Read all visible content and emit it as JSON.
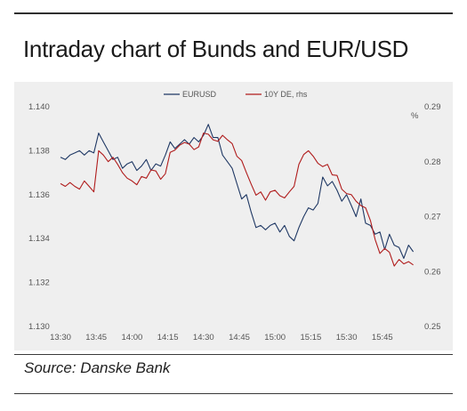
{
  "title": "Intraday chart of Bunds and EUR/USD",
  "source": "Source: Danske Bank",
  "colors": {
    "eurusd": "#1f3864",
    "bund": "#b01c1c",
    "panel_bg": "#efefef",
    "grid": "#cfcfcf"
  },
  "chart_data": {
    "type": "line",
    "x_labels": [
      "13:30",
      "13:45",
      "14:00",
      "14:15",
      "14:30",
      "14:45",
      "15:00",
      "15:15",
      "15:30",
      "15:45"
    ],
    "x_range": [
      "13:30",
      "16:00"
    ],
    "y_left": {
      "ticks": [
        "1.130",
        "1.132",
        "1.134",
        "1.136",
        "1.138",
        "1.140"
      ],
      "range": [
        1.13,
        1.14
      ]
    },
    "y_right": {
      "unit_label": "%",
      "ticks": [
        "0.25",
        "0.26",
        "0.27",
        "0.28",
        "0.29"
      ],
      "range": [
        0.25,
        0.29
      ]
    },
    "legend": {
      "placement": "top",
      "entries": [
        "EURUSD",
        "10Y DE, rhs"
      ]
    },
    "grid": false,
    "series": [
      {
        "name": "EURUSD",
        "axis": "left",
        "x": [
          "13:30",
          "13:32",
          "13:34",
          "13:36",
          "13:38",
          "13:40",
          "13:42",
          "13:44",
          "13:46",
          "13:48",
          "13:50",
          "13:52",
          "13:54",
          "13:56",
          "13:58",
          "14:00",
          "14:02",
          "14:04",
          "14:06",
          "14:08",
          "14:10",
          "14:12",
          "14:14",
          "14:16",
          "14:18",
          "14:20",
          "14:22",
          "14:24",
          "14:26",
          "14:28",
          "14:30",
          "14:32",
          "14:34",
          "14:36",
          "14:38",
          "14:40",
          "14:42",
          "14:44",
          "14:46",
          "14:48",
          "14:50",
          "14:52",
          "14:54",
          "14:56",
          "14:58",
          "15:00",
          "15:02",
          "15:04",
          "15:06",
          "15:08",
          "15:10",
          "15:12",
          "15:14",
          "15:16",
          "15:18",
          "15:20",
          "15:22",
          "15:24",
          "15:26",
          "15:28",
          "15:30",
          "15:32",
          "15:34",
          "15:36",
          "15:38",
          "15:40",
          "15:42",
          "15:44",
          "15:46",
          "15:48",
          "15:50",
          "15:52",
          "15:54",
          "15:56",
          "15:58"
        ],
        "values": [
          1.1377,
          1.1376,
          1.1378,
          1.1379,
          1.138,
          1.1378,
          1.138,
          1.1379,
          1.1388,
          1.1384,
          1.138,
          1.1376,
          1.1377,
          1.1372,
          1.1374,
          1.1375,
          1.1371,
          1.1373,
          1.1376,
          1.1371,
          1.1374,
          1.1373,
          1.1378,
          1.1384,
          1.1381,
          1.1383,
          1.1385,
          1.1383,
          1.1386,
          1.1384,
          1.1387,
          1.1392,
          1.1386,
          1.1386,
          1.1378,
          1.1375,
          1.1372,
          1.1365,
          1.1358,
          1.136,
          1.1352,
          1.1345,
          1.1346,
          1.1344,
          1.1346,
          1.1347,
          1.1343,
          1.1346,
          1.1341,
          1.1339,
          1.1345,
          1.135,
          1.1354,
          1.1353,
          1.1356,
          1.1368,
          1.1364,
          1.1366,
          1.1362,
          1.1357,
          1.136,
          1.1355,
          1.135,
          1.1358,
          1.1347,
          1.1346,
          1.1342,
          1.1343,
          1.1335,
          1.1342,
          1.1337,
          1.1336,
          1.1331,
          1.1337,
          1.1334
        ]
      },
      {
        "name": "10Y DE, rhs",
        "axis": "right",
        "x": [
          "13:30",
          "13:32",
          "13:34",
          "13:36",
          "13:38",
          "13:40",
          "13:42",
          "13:44",
          "13:46",
          "13:48",
          "13:50",
          "13:52",
          "13:54",
          "13:56",
          "13:58",
          "14:00",
          "14:02",
          "14:04",
          "14:06",
          "14:08",
          "14:10",
          "14:12",
          "14:14",
          "14:16",
          "14:18",
          "14:20",
          "14:22",
          "14:24",
          "14:26",
          "14:28",
          "14:30",
          "14:32",
          "14:34",
          "14:36",
          "14:38",
          "14:40",
          "14:42",
          "14:44",
          "14:46",
          "14:48",
          "14:50",
          "14:52",
          "14:54",
          "14:56",
          "14:58",
          "15:00",
          "15:02",
          "15:04",
          "15:06",
          "15:08",
          "15:10",
          "15:12",
          "15:14",
          "15:16",
          "15:18",
          "15:20",
          "15:22",
          "15:24",
          "15:26",
          "15:28",
          "15:30",
          "15:32",
          "15:34",
          "15:36",
          "15:38",
          "15:40",
          "15:42",
          "15:44",
          "15:46",
          "15:48",
          "15:50",
          "15:52",
          "15:54",
          "15:56",
          "15:58"
        ],
        "values": [
          0.276,
          0.2755,
          0.2762,
          0.2755,
          0.275,
          0.2765,
          0.2755,
          0.2745,
          0.282,
          0.2812,
          0.28,
          0.2808,
          0.2795,
          0.278,
          0.277,
          0.2765,
          0.2758,
          0.2773,
          0.277,
          0.2785,
          0.2783,
          0.2768,
          0.2778,
          0.2817,
          0.2821,
          0.283,
          0.2835,
          0.2832,
          0.2822,
          0.2827,
          0.2852,
          0.285,
          0.284,
          0.2837,
          0.2848,
          0.284,
          0.2833,
          0.281,
          0.2802,
          0.278,
          0.2759,
          0.2739,
          0.2745,
          0.273,
          0.2745,
          0.2748,
          0.2738,
          0.2734,
          0.2745,
          0.2755,
          0.2795,
          0.2813,
          0.282,
          0.281,
          0.2797,
          0.2791,
          0.2795,
          0.2776,
          0.2775,
          0.275,
          0.2742,
          0.274,
          0.2728,
          0.272,
          0.2716,
          0.2693,
          0.2658,
          0.2633,
          0.2642,
          0.2635,
          0.261,
          0.2622,
          0.2614,
          0.2618,
          0.2612
        ]
      }
    ]
  }
}
